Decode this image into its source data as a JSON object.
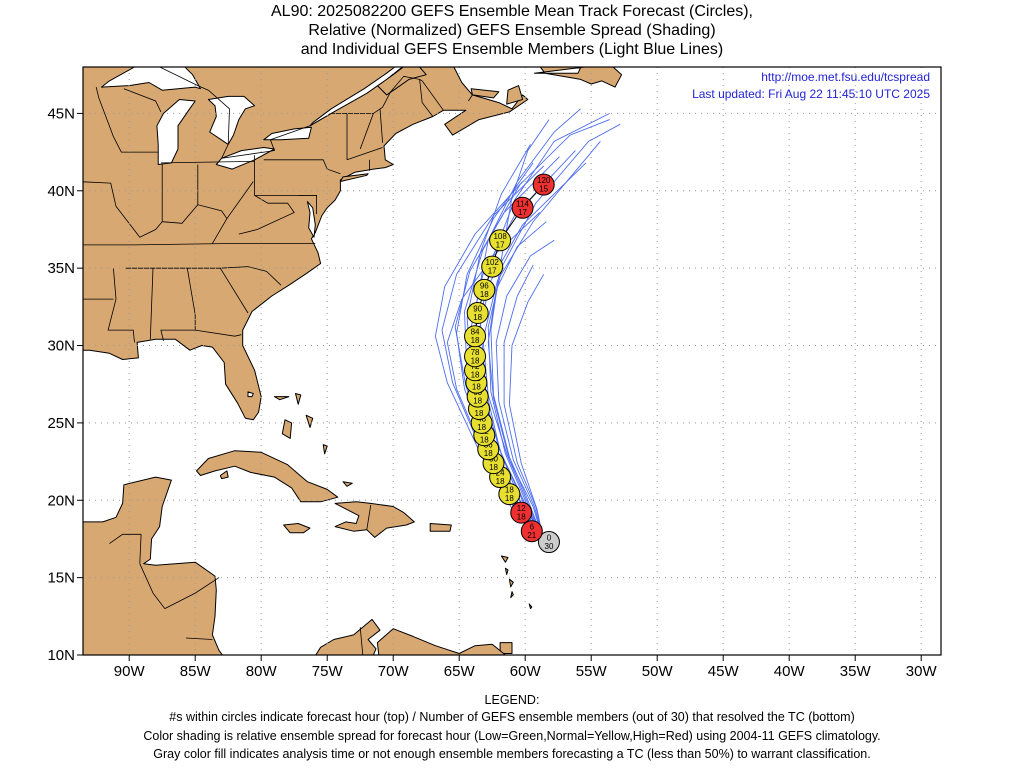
{
  "title": {
    "line1": "AL90: 2025082200 GEFS Ensemble Mean Track Forecast (Circles),",
    "line2": "Relative (Normalized) GEFS Ensemble Spread (Shading)",
    "line3": "and Individual GEFS Ensemble Members (Light Blue Lines)"
  },
  "credits": {
    "url": "http://moe.met.fsu.edu/tcspread",
    "updated": "Last updated: Fri Aug 22 11:45:10 UTC 2025"
  },
  "axes": {
    "lon_labels": [
      "90W",
      "85W",
      "80W",
      "75W",
      "70W",
      "65W",
      "60W",
      "55W",
      "50W",
      "45W",
      "40W",
      "35W",
      "30W"
    ],
    "lat_labels": [
      "45N",
      "40N",
      "35N",
      "30N",
      "25N",
      "20N",
      "15N",
      "10N"
    ]
  },
  "colors": {
    "land": "#d8a872",
    "ocean": "#ffffff",
    "member_line": "#4d6cf0",
    "low_spread": "#22c022",
    "normal_spread": "#e8e030",
    "high_spread": "#ee3030",
    "analysis_gray": "#cccccc"
  },
  "track": [
    {
      "hour": "0",
      "members": "30",
      "lon": -58.2,
      "lat": 17.3,
      "spread": "gray"
    },
    {
      "hour": "6",
      "members": "21",
      "lon": -59.5,
      "lat": 18.0,
      "spread": "high"
    },
    {
      "hour": "12",
      "members": "18",
      "lon": -60.3,
      "lat": 19.2,
      "spread": "high"
    },
    {
      "hour": "18",
      "members": "18",
      "lon": -61.2,
      "lat": 20.4,
      "spread": "normal"
    },
    {
      "hour": "24",
      "members": "18",
      "lon": -61.9,
      "lat": 21.5,
      "spread": "normal"
    },
    {
      "hour": "30",
      "members": "18",
      "lon": -62.4,
      "lat": 22.4,
      "spread": "normal"
    },
    {
      "hour": "36",
      "members": "18",
      "lon": -62.8,
      "lat": 23.3,
      "spread": "normal"
    },
    {
      "hour": "42",
      "members": "18",
      "lon": -63.1,
      "lat": 24.2,
      "spread": "normal"
    },
    {
      "hour": "48",
      "members": "18",
      "lon": -63.3,
      "lat": 25.0,
      "spread": "normal"
    },
    {
      "hour": "54",
      "members": "18",
      "lon": -63.5,
      "lat": 25.9,
      "spread": "normal"
    },
    {
      "hour": "60",
      "members": "18",
      "lon": -63.6,
      "lat": 26.7,
      "spread": "normal"
    },
    {
      "hour": "66",
      "members": "18",
      "lon": -63.7,
      "lat": 27.6,
      "spread": "normal"
    },
    {
      "hour": "72",
      "members": "18",
      "lon": -63.8,
      "lat": 28.4,
      "spread": "normal"
    },
    {
      "hour": "78",
      "members": "18",
      "lon": -63.8,
      "lat": 29.3,
      "spread": "normal"
    },
    {
      "hour": "84",
      "members": "18",
      "lon": -63.8,
      "lat": 30.6,
      "spread": "normal"
    },
    {
      "hour": "90",
      "members": "18",
      "lon": -63.6,
      "lat": 32.1,
      "spread": "normal"
    },
    {
      "hour": "96",
      "members": "18",
      "lon": -63.1,
      "lat": 33.6,
      "spread": "normal"
    },
    {
      "hour": "102",
      "members": "17",
      "lon": -62.5,
      "lat": 35.1,
      "spread": "normal"
    },
    {
      "hour": "108",
      "members": "17",
      "lon": -61.9,
      "lat": 36.8,
      "spread": "normal"
    },
    {
      "hour": "114",
      "members": "17",
      "lon": -60.2,
      "lat": 38.9,
      "spread": "high"
    },
    {
      "hour": "120",
      "members": "15",
      "lon": -58.6,
      "lat": 40.4,
      "spread": "high"
    }
  ],
  "member_tracks": [
    [
      [
        -58.6,
        17.3
      ],
      [
        -60.4,
        19.6
      ],
      [
        -62.7,
        23.2
      ],
      [
        -64.5,
        27.4
      ],
      [
        -65.3,
        31.2
      ],
      [
        -64.2,
        34.8
      ],
      [
        -61.6,
        38.6
      ],
      [
        -57.4,
        42.2
      ]
    ],
    [
      [
        -58.6,
        17.3
      ],
      [
        -60.9,
        19.6
      ],
      [
        -63.4,
        23.4
      ],
      [
        -65.5,
        27.6
      ],
      [
        -66.3,
        31.0
      ],
      [
        -65.2,
        34.6
      ],
      [
        -62.4,
        38.4
      ],
      [
        -58.6,
        41.6
      ]
    ],
    [
      [
        -58.6,
        17.3
      ],
      [
        -61.1,
        19.6
      ],
      [
        -63.6,
        23.4
      ],
      [
        -65.9,
        27.6
      ],
      [
        -66.8,
        30.6
      ],
      [
        -66.1,
        33.8
      ],
      [
        -63.8,
        37.2
      ],
      [
        -60.2,
        40.6
      ]
    ],
    [
      [
        -58.6,
        17.3
      ],
      [
        -60.8,
        19.6
      ],
      [
        -63.2,
        23.2
      ],
      [
        -65.2,
        27.2
      ],
      [
        -65.9,
        30.2
      ],
      [
        -64.8,
        33.0
      ],
      [
        -62.4,
        35.8
      ],
      [
        -58.9,
        38.6
      ]
    ],
    [
      [
        -58.6,
        17.3
      ],
      [
        -60.5,
        19.6
      ],
      [
        -62.8,
        23.2
      ],
      [
        -64.6,
        27.2
      ],
      [
        -65.2,
        30.8
      ],
      [
        -64.4,
        34.6
      ],
      [
        -62.4,
        38.2
      ],
      [
        -59.4,
        41.8
      ]
    ],
    [
      [
        -58.6,
        17.3
      ],
      [
        -60.2,
        19.6
      ],
      [
        -62.2,
        23.0
      ],
      [
        -63.8,
        27.0
      ],
      [
        -64.2,
        30.8
      ],
      [
        -63.2,
        34.6
      ],
      [
        -60.8,
        38.4
      ],
      [
        -56.2,
        42.6
      ]
    ],
    [
      [
        -58.6,
        17.3
      ],
      [
        -59.9,
        19.6
      ],
      [
        -61.8,
        23.0
      ],
      [
        -63.2,
        26.8
      ],
      [
        -63.6,
        30.6
      ],
      [
        -62.6,
        34.2
      ],
      [
        -60.2,
        37.8
      ],
      [
        -55.4,
        41.8
      ]
    ],
    [
      [
        -58.6,
        17.3
      ],
      [
        -59.7,
        19.6
      ],
      [
        -61.4,
        23.0
      ],
      [
        -62.8,
        26.8
      ],
      [
        -63.2,
        30.4
      ],
      [
        -62.1,
        34.2
      ],
      [
        -59.4,
        38.0
      ],
      [
        -54.3,
        43.2
      ]
    ],
    [
      [
        -58.6,
        17.3
      ],
      [
        -59.4,
        19.6
      ],
      [
        -61.2,
        22.6
      ],
      [
        -62.4,
        26.6
      ],
      [
        -62.8,
        30.2
      ],
      [
        -62.2,
        33.6
      ],
      [
        -60.6,
        36.4
      ],
      [
        -58.4,
        38.0
      ]
    ],
    [
      [
        -58.6,
        17.3
      ],
      [
        -59.3,
        19.6
      ],
      [
        -60.9,
        22.6
      ],
      [
        -62.0,
        26.4
      ],
      [
        -62.2,
        30.2
      ],
      [
        -61.4,
        33.2
      ],
      [
        -59.6,
        35.8
      ],
      [
        -57.8,
        36.8
      ]
    ],
    [
      [
        -58.6,
        17.3
      ],
      [
        -59.2,
        19.6
      ],
      [
        -60.6,
        22.4
      ],
      [
        -61.6,
        26.2
      ],
      [
        -61.6,
        30.2
      ],
      [
        -60.6,
        33.2
      ],
      [
        -59.4,
        35.2
      ]
    ],
    [
      [
        -58.6,
        17.3
      ],
      [
        -59.1,
        19.4
      ],
      [
        -60.3,
        22.4
      ],
      [
        -61.2,
        26.2
      ],
      [
        -61.0,
        30.0
      ],
      [
        -59.8,
        32.8
      ],
      [
        -58.6,
        34.6
      ]
    ],
    [
      [
        -58.6,
        17.3
      ],
      [
        -60.0,
        19.6
      ],
      [
        -61.9,
        23.2
      ],
      [
        -63.0,
        27.2
      ],
      [
        -63.4,
        31.6
      ],
      [
        -62.6,
        35.4
      ],
      [
        -60.8,
        39.4
      ],
      [
        -57.8,
        43.2
      ],
      [
        -53.6,
        45.0
      ]
    ],
    [
      [
        -58.6,
        17.3
      ],
      [
        -60.6,
        19.6
      ],
      [
        -62.8,
        23.6
      ],
      [
        -64.4,
        28.0
      ],
      [
        -64.6,
        32.2
      ],
      [
        -63.2,
        36.2
      ],
      [
        -60.4,
        40.4
      ],
      [
        -56.6,
        43.6
      ],
      [
        -53.6,
        44.6
      ]
    ],
    [
      [
        -58.6,
        17.3
      ],
      [
        -59.8,
        19.6
      ],
      [
        -61.5,
        23.0
      ],
      [
        -62.6,
        27.0
      ],
      [
        -62.8,
        31.2
      ],
      [
        -61.7,
        35.2
      ],
      [
        -59.2,
        39.2
      ],
      [
        -55.2,
        43.2
      ],
      [
        -52.8,
        44.3
      ]
    ],
    [
      [
        -58.6,
        17.3
      ],
      [
        -60.2,
        19.6
      ],
      [
        -62.0,
        23.4
      ],
      [
        -63.4,
        27.8
      ],
      [
        -63.8,
        32.2
      ],
      [
        -62.8,
        36.8
      ],
      [
        -60.6,
        40.6
      ],
      [
        -57.8,
        43.8
      ],
      [
        -55.8,
        45.3
      ]
    ],
    [
      [
        -58.6,
        17.3
      ],
      [
        -59.6,
        19.6
      ],
      [
        -61.2,
        22.8
      ],
      [
        -62.4,
        26.8
      ],
      [
        -62.6,
        31.0
      ],
      [
        -61.8,
        35.6
      ],
      [
        -61.0,
        39.6
      ],
      [
        -59.8,
        42.6
      ],
      [
        -58.2,
        44.6
      ]
    ],
    [
      [
        -58.6,
        17.3
      ],
      [
        -60.4,
        19.6
      ],
      [
        -62.4,
        23.2
      ],
      [
        -64.0,
        27.4
      ],
      [
        -64.4,
        31.8
      ],
      [
        -63.4,
        36.0
      ],
      [
        -61.8,
        39.8
      ],
      [
        -59.6,
        43.0
      ]
    ]
  ],
  "map_notes": {
    "projection": "equirectangular",
    "lon_range": [
      -93.5,
      -28.5
    ],
    "lat_range": [
      10,
      48
    ],
    "gridlines": true
  },
  "legend": {
    "heading": "LEGEND:",
    "line1": "#s within circles indicate forecast hour (top) / Number of GEFS ensemble members (out of 30) that resolved the TC (bottom)",
    "line2": "Color shading is relative ensemble spread for forecast hour (Low=Green,Normal=Yellow,High=Red) using 2004-11 GEFS climatology.",
    "line3": "Gray color fill indicates analysis time or not enough ensemble members forecasting a TC (less than 50%) to warrant classification."
  }
}
